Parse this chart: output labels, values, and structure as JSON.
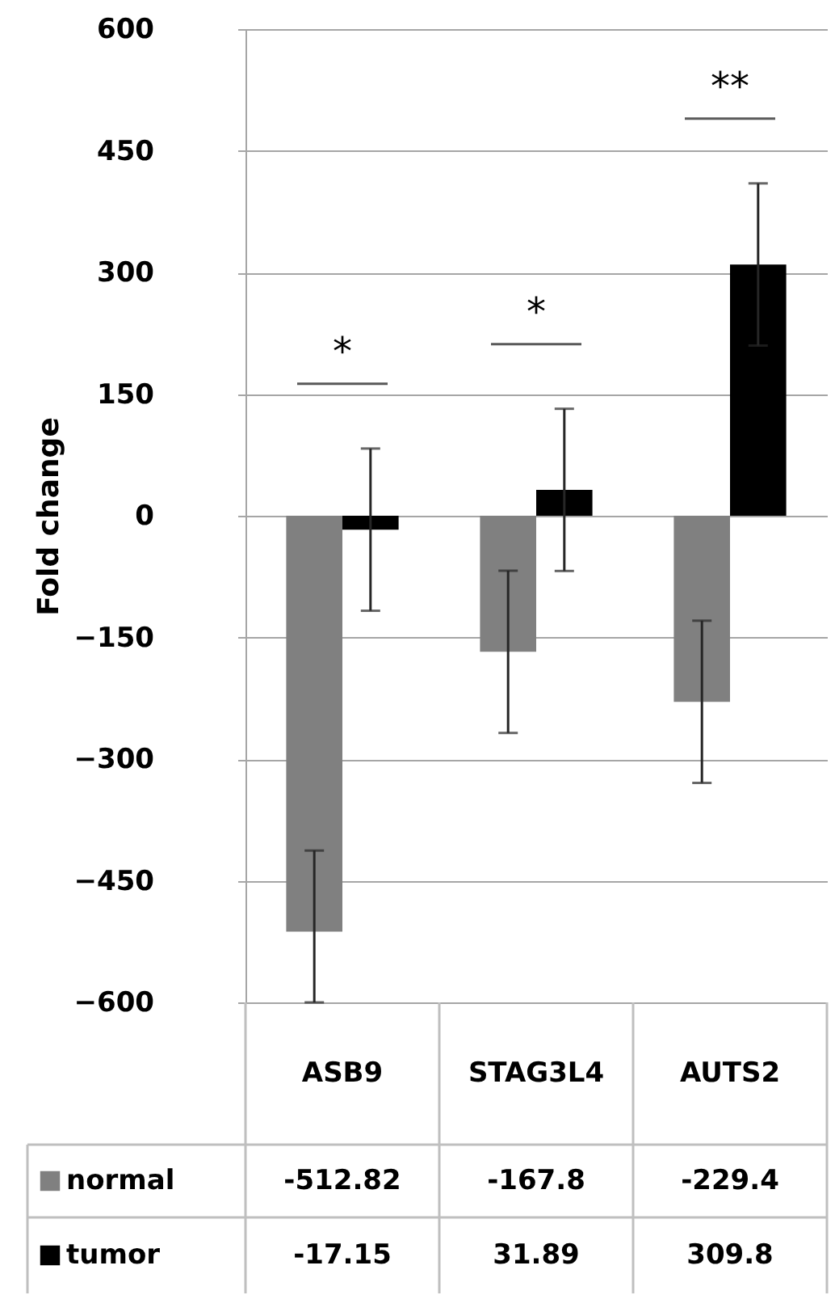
{
  "chart_data": {
    "type": "bar",
    "ylabel": "Fold change",
    "categories": [
      "ASB9",
      "STAG3L4",
      "AUTS2"
    ],
    "series": [
      {
        "name": "normal",
        "color": "#808080",
        "values": [
          -512.82,
          -167.8,
          -229.4
        ],
        "errors": [
          [
            -600,
            -412.82
          ],
          100,
          100
        ]
      },
      {
        "name": "tumor",
        "color": "#000000",
        "values": [
          -17.15,
          31.89,
          309.8
        ],
        "errors": [
          100,
          100,
          100
        ]
      }
    ],
    "ylim": [
      -600,
      600
    ],
    "yticks": [
      -600,
      -450,
      -300,
      -150,
      0,
      150,
      300,
      450,
      600
    ],
    "grid": "y",
    "legend": "bottom",
    "data_labels": true,
    "annotations": [
      "*",
      "*",
      "**"
    ]
  }
}
